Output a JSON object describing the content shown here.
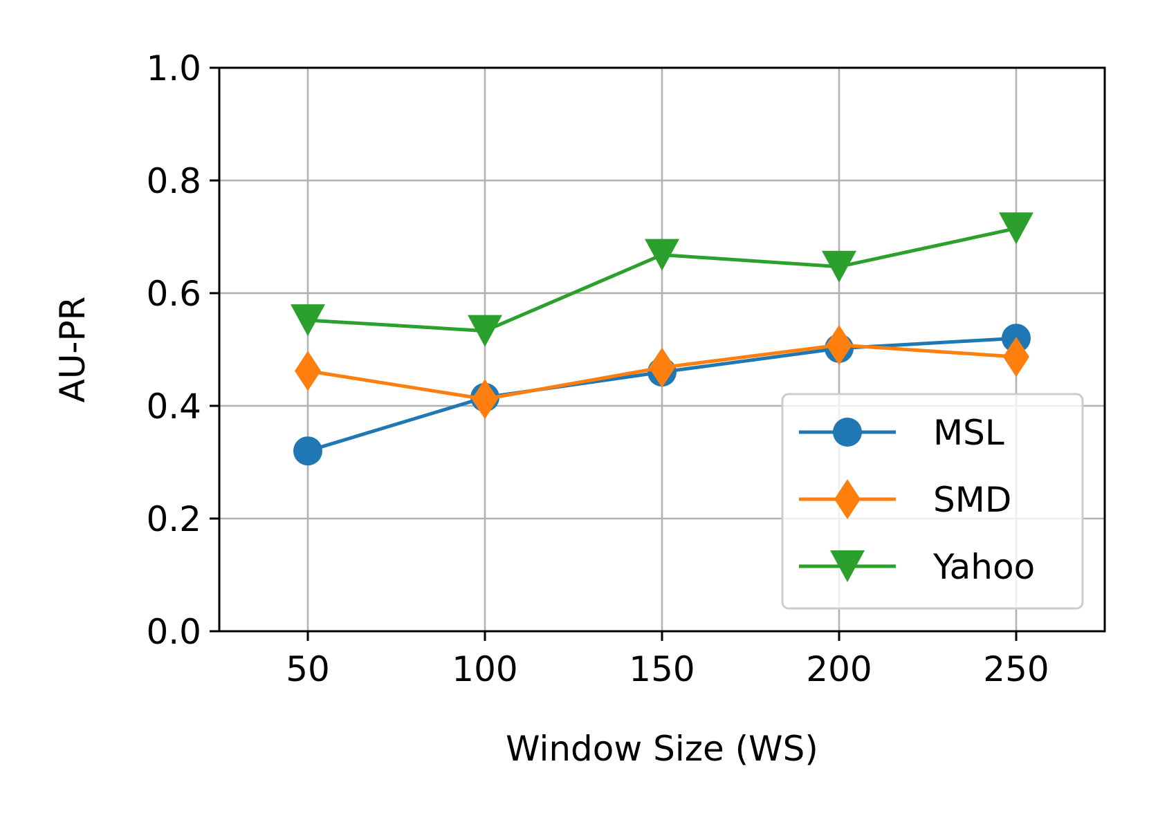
{
  "chart_data": {
    "type": "line",
    "title": "",
    "xlabel": "Window Size (WS)",
    "ylabel": "AU-PR",
    "x": [
      50,
      100,
      150,
      200,
      250
    ],
    "xlim": [
      25,
      275
    ],
    "ylim": [
      0.0,
      1.0
    ],
    "xticks": [
      "50",
      "100",
      "150",
      "200",
      "250"
    ],
    "yticks": [
      "0.0",
      "0.2",
      "0.4",
      "0.6",
      "0.8",
      "1.0"
    ],
    "grid": true,
    "legend_position": "lower-right",
    "series": [
      {
        "name": "MSL",
        "values": [
          0.32,
          0.415,
          0.46,
          0.502,
          0.52
        ],
        "color": "#1f77b4",
        "marker": "circle"
      },
      {
        "name": "SMD",
        "values": [
          0.462,
          0.412,
          0.468,
          0.508,
          0.487
        ],
        "color": "#ff7f0e",
        "marker": "diamond"
      },
      {
        "name": "Yahoo",
        "values": [
          0.552,
          0.533,
          0.668,
          0.647,
          0.715
        ],
        "color": "#2ca02c",
        "marker": "triangle-down"
      }
    ]
  }
}
